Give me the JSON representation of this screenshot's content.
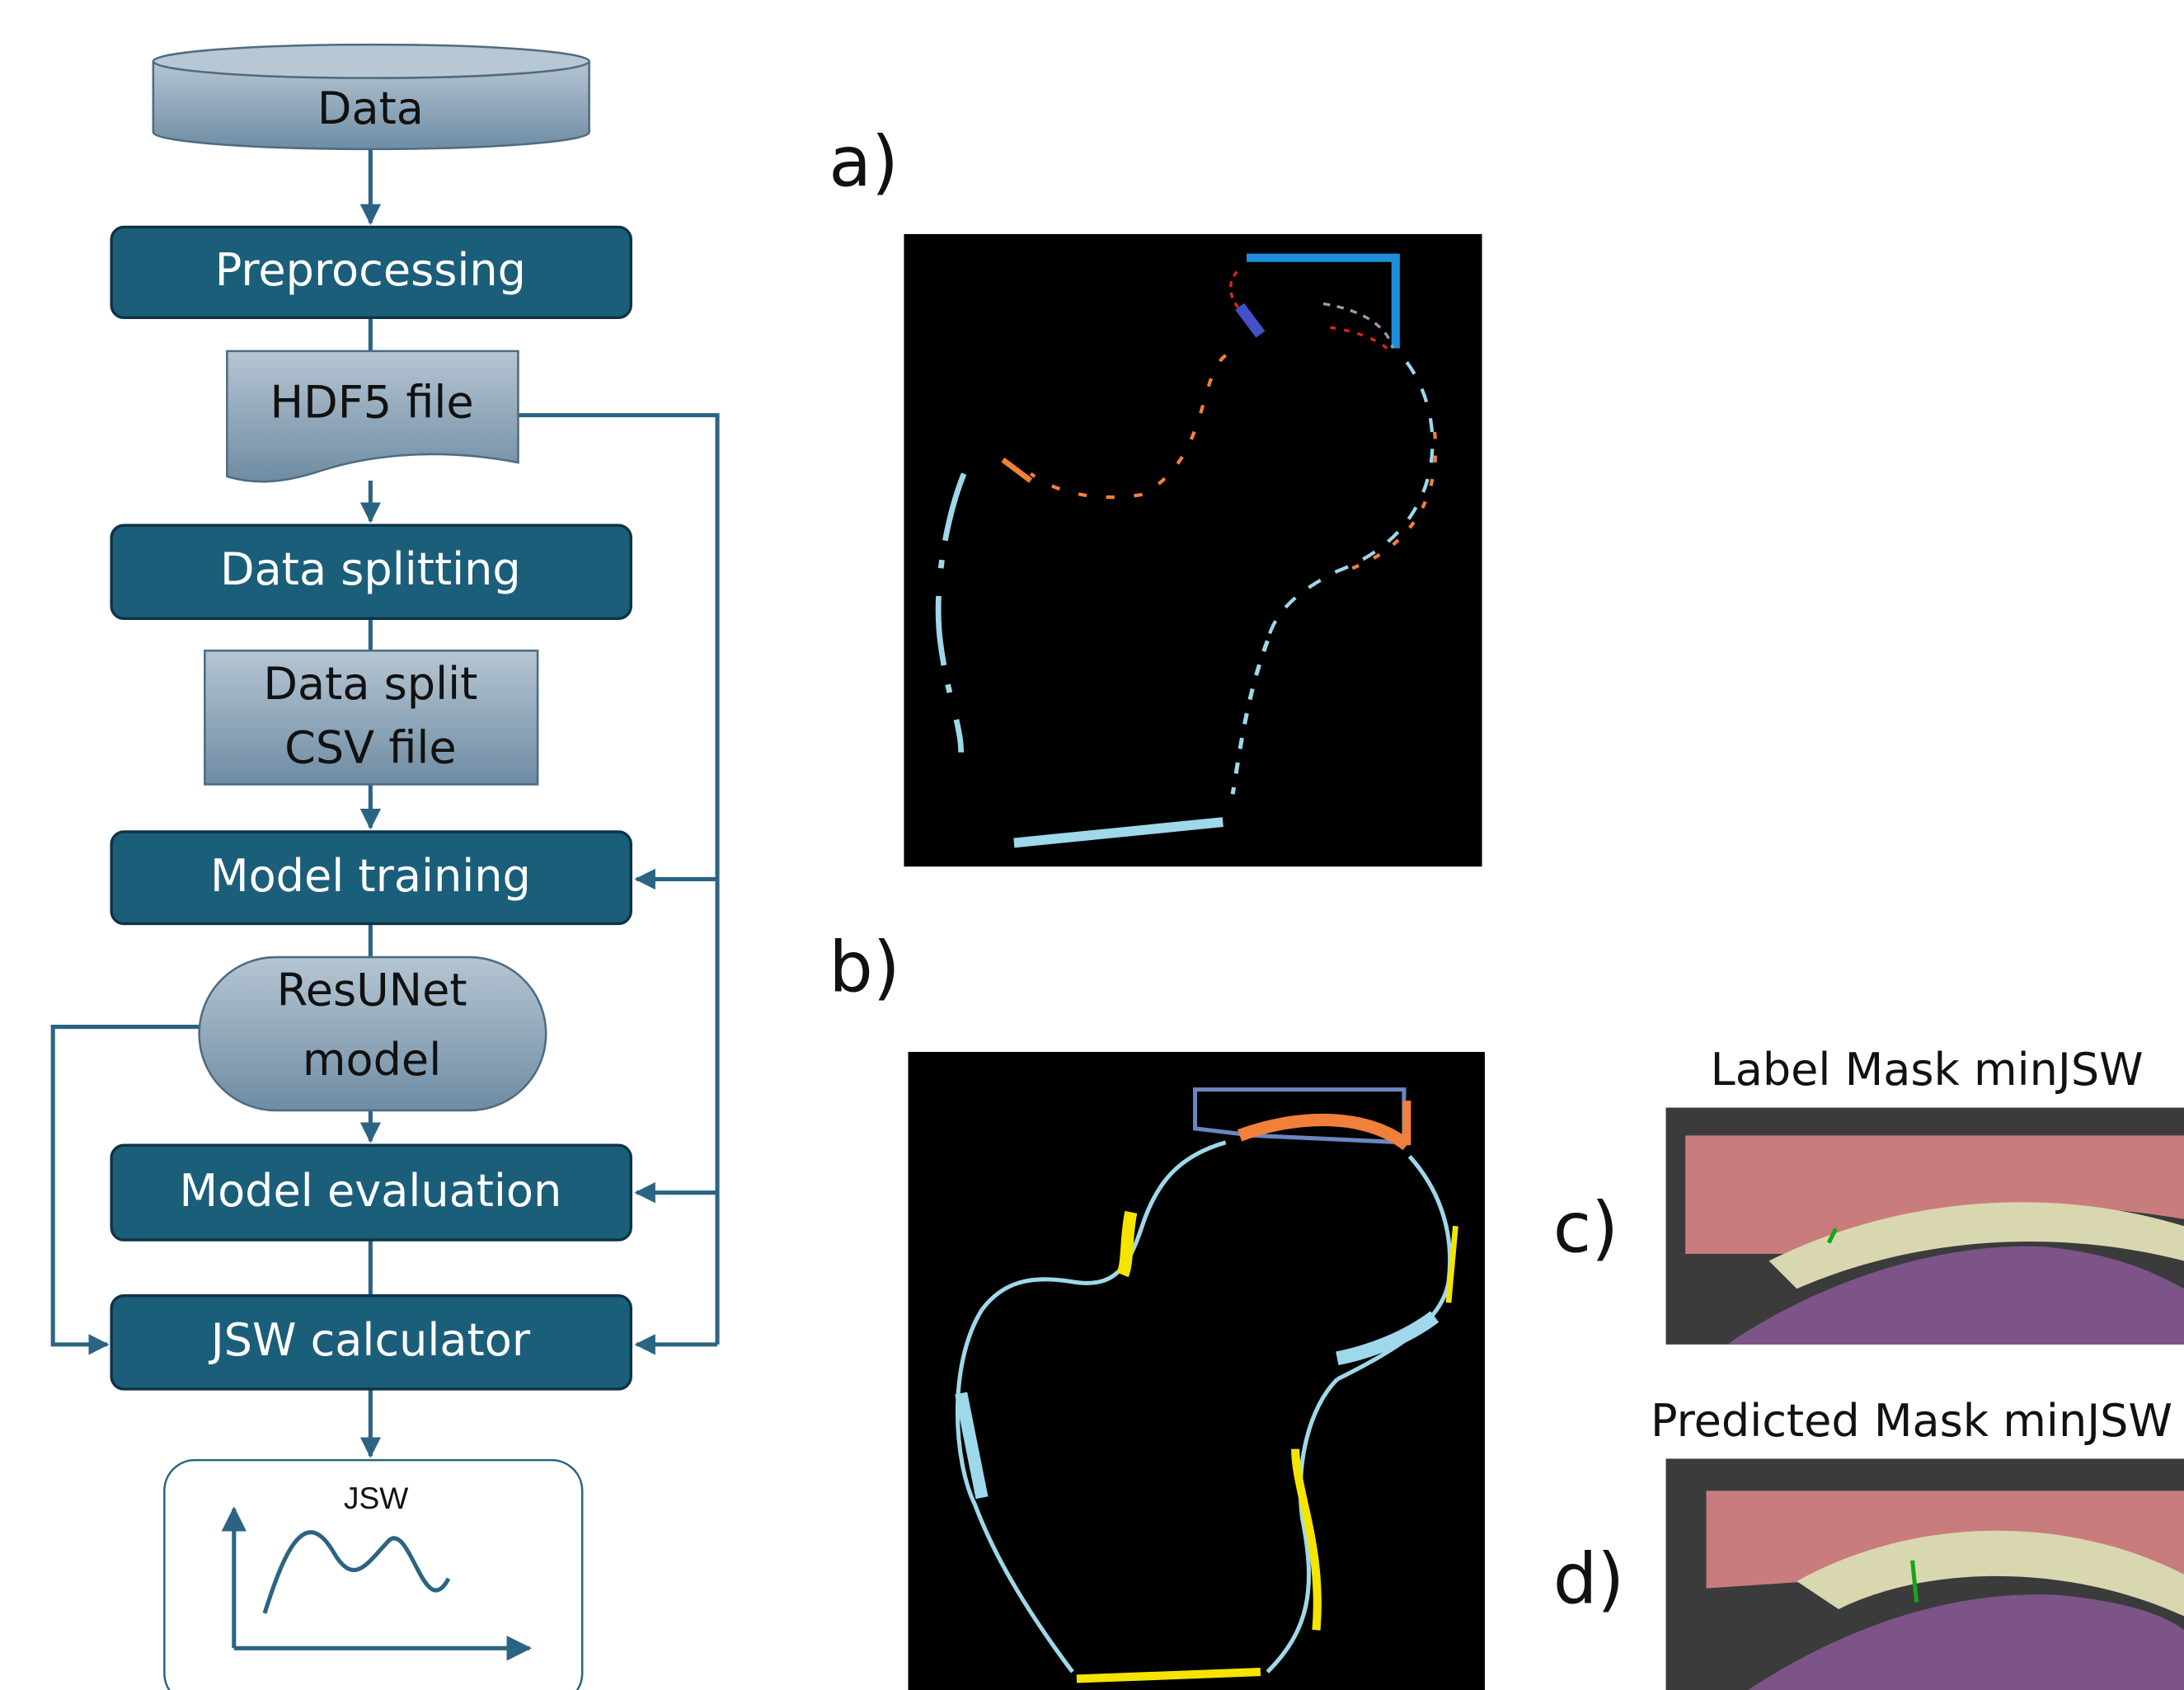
{
  "flowchart": {
    "nodes": [
      {
        "label": "Data"
      },
      {
        "label": "Preprocessing"
      },
      {
        "label": "HDF5 file"
      },
      {
        "label": "Data splitting"
      },
      {
        "lines": [
          "Data split",
          "CSV file"
        ]
      },
      {
        "label": "Model training"
      },
      {
        "lines": [
          "ResUNet",
          "model"
        ]
      },
      {
        "label": "Model evaluation"
      },
      {
        "label": "JSW calculator"
      },
      {
        "label": "JSW"
      }
    ]
  },
  "panels": [
    {
      "label": "a)"
    },
    {
      "label": "b)"
    },
    {
      "label": "c)",
      "title": "Label Mask minJSW"
    },
    {
      "label": "d)",
      "title": "Predicted Mask minJSW"
    }
  ]
}
